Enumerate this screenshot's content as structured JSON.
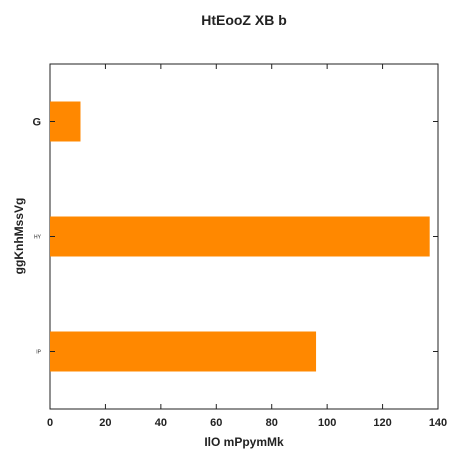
{
  "chart_data": {
    "type": "bar",
    "orientation": "horizontal",
    "title": "HtEooZ XB b",
    "xlabel": "IlO mPpymMk",
    "ylabel": "ggKnhMssVg",
    "categories": [
      "G",
      "HY",
      "IP"
    ],
    "values": [
      11,
      137,
      96
    ],
    "xlim": [
      0,
      140
    ],
    "xticks": [
      0,
      20,
      40,
      60,
      80,
      100,
      120,
      140
    ],
    "grid": false,
    "bar_color": "#ff8800"
  }
}
